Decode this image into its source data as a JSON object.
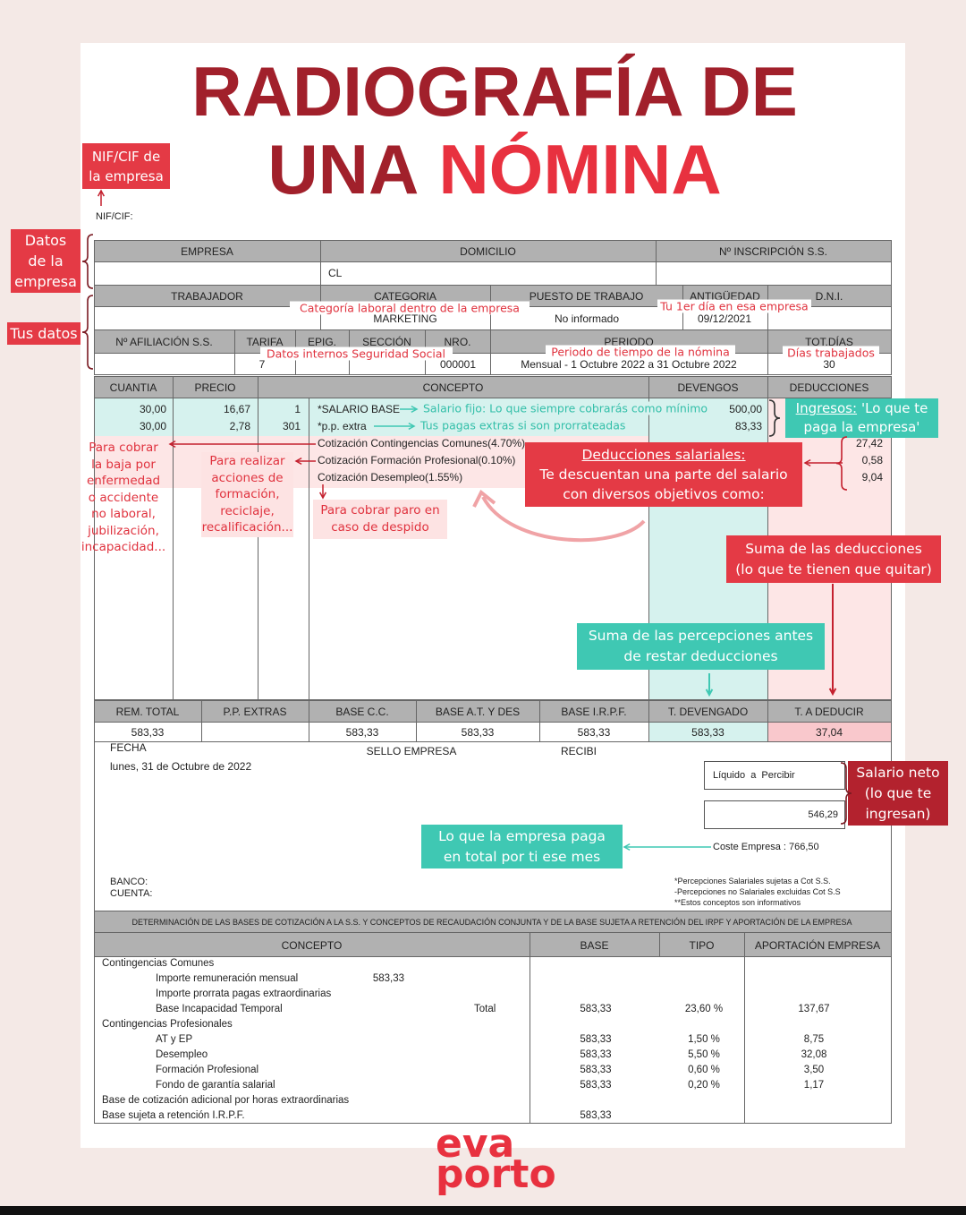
{
  "header": {
    "title_line1": "RADIOGRAFÍA DE",
    "title_line2": [
      "UNA",
      "NÓMINA"
    ]
  },
  "notes": {
    "nif": [
      "NIF/CIF de",
      "la empresa"
    ],
    "company": [
      "Datos",
      "de la",
      "empresa"
    ],
    "you": "Tus datos",
    "category": "Categoría laboral dentro de la empresa",
    "first_day": "Tu 1er día en esa empresa",
    "ss_data": "Datos internos Seguridad Social",
    "period": "Periodo de tiempo de la nómina",
    "days": "Días trabajados",
    "base_salary": "Salario fijo: Lo que siempre cobrarás como mínimo",
    "extras": "Tus pagas extras si son prorrateadas",
    "income": {
      "label": "Ingresos:",
      "line1": "'Lo que te",
      "line2": "paga la empresa'"
    },
    "common": [
      "Para cobrar",
      "la baja por",
      "enfermedad",
      "o accidente",
      "no laboral,",
      "jubilización,",
      "incapacidad..."
    ],
    "training": [
      "Para realizar",
      "acciones de",
      "formación,",
      "reciclaje,",
      "recalificación..."
    ],
    "unemployment": [
      "Para cobrar paro en",
      "caso de despido"
    ],
    "deductions": {
      "title": "Deducciones salariales:",
      "lines": [
        "Te descuentan una parte del salario",
        "con diversos objetivos como:"
      ]
    },
    "deduct_sum": [
      "Suma de las deducciones",
      "(lo que te tienen que quitar)"
    ],
    "accrued_sum": [
      "Suma de las percepciones antes",
      "de restar deducciones"
    ],
    "net": [
      "Salario neto",
      "(lo que te",
      "ingresan)"
    ],
    "cost": [
      "Lo que la empresa paga",
      "en total por ti ese mes"
    ]
  },
  "payslip": {
    "nif_label": "NIF/CIF:",
    "company": {
      "headers": [
        "EMPRESA",
        "DOMICILIO",
        "Nº INSCRIPCIÓN S.S."
      ],
      "address": "CL"
    },
    "worker": {
      "headers": [
        "TRABAJADOR",
        "CATEGORIA",
        "PUESTO DE TRABAJO",
        "ANTIGÜEDAD",
        "D.N.I."
      ],
      "category": "MARKETING",
      "position": "No informado",
      "seniority": "09/12/2021"
    },
    "affiliation": {
      "headers": [
        "Nº AFILIACIÓN S.S.",
        "TARIFA",
        "EPIG.",
        "SECCIÓN",
        "NRO.",
        "PERIODO",
        "TOT.DÍAS"
      ],
      "tariff": "7",
      "number": "000001",
      "period": "Mensual - 1 Octubre 2022 a 31 Octubre 2022",
      "days": "30"
    },
    "concepts": {
      "headers": [
        "CUANTIA",
        "PRECIO",
        "CONCEPTO",
        "DEVENGOS",
        "DEDUCCIONES"
      ],
      "rows": [
        {
          "quantity": "30,00",
          "price": "16,67",
          "code": "1",
          "concept": "*SALARIO BASE",
          "accrued": "500,00"
        },
        {
          "quantity": "30,00",
          "price": "2,78",
          "code": "301",
          "concept": "*p.p. extra",
          "accrued": "83,33"
        },
        {
          "concept": "Cotización Contingencias Comunes(4.70%)",
          "deduction": "27,42"
        },
        {
          "concept": "Cotización Formación Profesional(0.10%)",
          "deduction": "0,58"
        },
        {
          "concept": "Cotización Desempleo(1.55%)",
          "deduction": "9,04"
        }
      ]
    },
    "totals": {
      "headers": [
        "REM. TOTAL",
        "P.P. EXTRAS",
        "BASE C.C.",
        "BASE A.T. Y DES",
        "BASE I.R.P.F.",
        "T. DEVENGADO",
        "T. A DEDUCIR"
      ],
      "rem_total": "583,33",
      "base_cc": "583,33",
      "base_at": "583,33",
      "base_irpf": "583,33",
      "accrued": "583,33",
      "deduct": "37,04"
    },
    "footer": {
      "date_label": "FECHA",
      "date": "lunes, 31 de Octubre de 2022",
      "stamp": "SELLO EMPRESA",
      "received": "RECIBI",
      "net_label": "Líquido  a  Percibir",
      "net": "546,29",
      "cost": "Coste Empresa : 766,50",
      "bank": "BANCO:",
      "account": "CUENTA:",
      "legend": [
        "*Percepciones Salariales sujetas a Cot S.S.",
        "-Percepciones no Salariales excluidas Cot S.S",
        "**Estos conceptos son informativos"
      ]
    },
    "bases": {
      "title": "DETERMINACIÓN DE LAS BASES DE COTIZACIÓN A LA S.S. Y CONCEPTOS DE RECAUDACIÓN CONJUNTA Y DE LA BASE SUJETA A RETENCIÓN DEL IRPF Y APORTACIÓN DE LA EMPRESA",
      "headers": [
        "CONCEPTO",
        "BASE",
        "TIPO",
        "APORTACIÓN EMPRESA"
      ],
      "sections": [
        {
          "title": "Contingencias Comunes",
          "items": [
            {
              "concept": "Importe remuneración mensual",
              "amount": "583,33"
            },
            {
              "concept": "Importe prorrata pagas extraordinarias"
            },
            {
              "concept": "Base Incapacidad Temporal",
              "total": "Total",
              "base": "583,33",
              "rate": "23,60 %",
              "contribution": "137,67"
            }
          ]
        },
        {
          "title": "Contingencias Profesionales",
          "items": [
            {
              "concept": "AT y EP",
              "base": "583,33",
              "rate": "1,50 %",
              "contribution": "8,75"
            },
            {
              "concept": "Desempleo",
              "base": "583,33",
              "rate": "5,50 %",
              "contribution": "32,08"
            },
            {
              "concept": "Formación Profesional",
              "base": "583,33",
              "rate": "0,60 %",
              "contribution": "3,50"
            },
            {
              "concept": "Fondo de garantía salarial",
              "base": "583,33",
              "rate": "0,20 %",
              "contribution": "1,17"
            }
          ]
        },
        {
          "title": "Base de cotización adicional por horas extraordinarias"
        },
        {
          "title": "Base sujeta a retención I.R.P.F.",
          "base": "583,33"
        }
      ]
    }
  },
  "brand": [
    "eva",
    "porto"
  ]
}
